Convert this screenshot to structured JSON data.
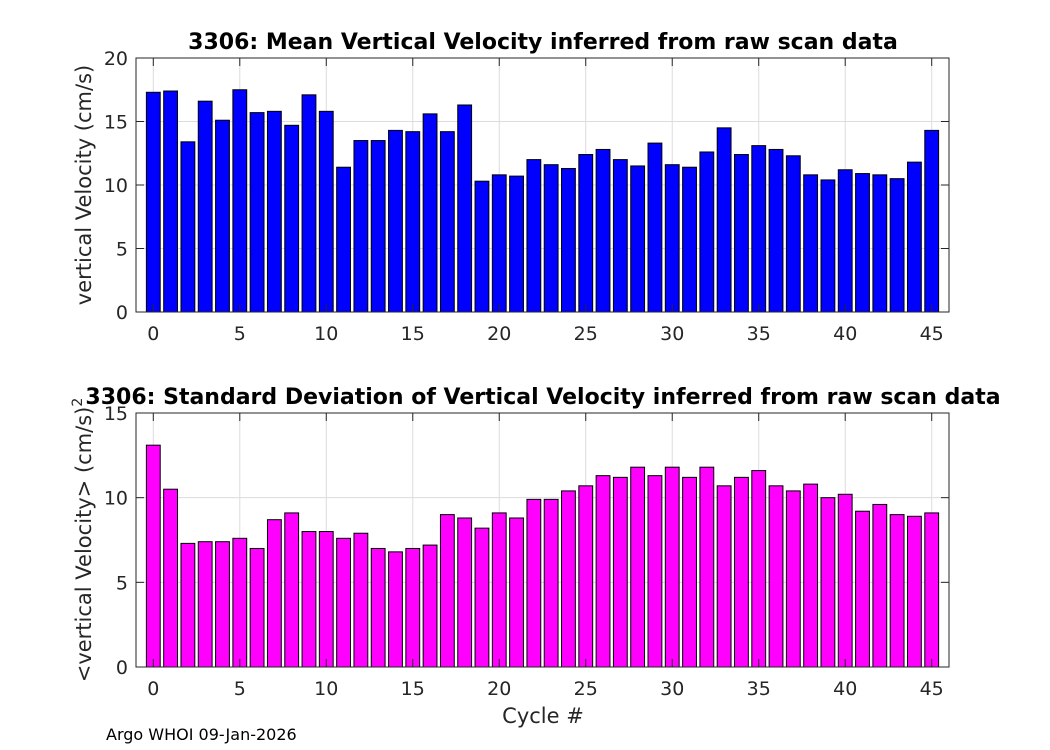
{
  "footer": "Argo WHOI 09-Jan-2026",
  "chart_data": [
    {
      "type": "bar",
      "title": "3306: Mean Vertical Velocity inferred from raw scan data",
      "xlabel": "",
      "ylabel": "vertical Velocity (cm/s)",
      "color": "#0000ff",
      "xlim": [
        -1,
        46
      ],
      "ylim": [
        0,
        20
      ],
      "xticks": [
        0,
        5,
        10,
        15,
        20,
        25,
        30,
        35,
        40,
        45
      ],
      "yticks": [
        0,
        5,
        10,
        15,
        20
      ],
      "grid": true,
      "x": [
        0,
        1,
        2,
        3,
        4,
        5,
        6,
        7,
        8,
        9,
        10,
        11,
        12,
        13,
        14,
        15,
        16,
        17,
        18,
        19,
        20,
        21,
        22,
        23,
        24,
        25,
        26,
        27,
        28,
        29,
        30,
        31,
        32,
        33,
        34,
        35,
        36,
        37,
        38,
        39,
        40,
        41,
        42,
        43,
        44,
        45
      ],
      "values": [
        17.3,
        17.4,
        13.4,
        16.6,
        15.1,
        17.5,
        15.7,
        15.8,
        14.7,
        17.1,
        15.8,
        11.4,
        13.5,
        13.5,
        14.3,
        14.2,
        15.6,
        14.2,
        16.3,
        10.3,
        10.8,
        10.7,
        12.0,
        11.6,
        11.3,
        12.4,
        12.8,
        12.0,
        11.5,
        13.3,
        11.6,
        11.4,
        12.6,
        14.5,
        12.4,
        13.1,
        12.8,
        12.3,
        10.8,
        10.4,
        11.2,
        10.9,
        10.8,
        10.5,
        11.8,
        14.3
      ]
    },
    {
      "type": "bar",
      "title": "3306: Standard Deviation of Vertical Velocity inferred from raw scan data",
      "xlabel": "Cycle #",
      "ylabel": "<vertical Velocity> (cm/s)",
      "ylabel_superscript": "2",
      "color": "#ff00ff",
      "xlim": [
        -1,
        46
      ],
      "ylim": [
        0,
        15
      ],
      "xticks": [
        0,
        5,
        10,
        15,
        20,
        25,
        30,
        35,
        40,
        45
      ],
      "yticks": [
        0,
        5,
        10,
        15
      ],
      "grid": true,
      "x": [
        0,
        1,
        2,
        3,
        4,
        5,
        6,
        7,
        8,
        9,
        10,
        11,
        12,
        13,
        14,
        15,
        16,
        17,
        18,
        19,
        20,
        21,
        22,
        23,
        24,
        25,
        26,
        27,
        28,
        29,
        30,
        31,
        32,
        33,
        34,
        35,
        36,
        37,
        38,
        39,
        40,
        41,
        42,
        43,
        44,
        45
      ],
      "values": [
        13.1,
        10.5,
        7.3,
        7.4,
        7.4,
        7.6,
        7.0,
        8.7,
        9.1,
        8.0,
        8.0,
        7.6,
        7.9,
        7.0,
        6.8,
        7.0,
        7.2,
        9.0,
        8.8,
        8.2,
        9.1,
        8.8,
        9.9,
        9.9,
        10.4,
        10.7,
        11.3,
        11.2,
        11.8,
        11.3,
        11.8,
        11.2,
        11.8,
        10.7,
        11.2,
        11.6,
        10.7,
        10.4,
        10.8,
        10.0,
        10.2,
        9.2,
        9.6,
        9.0,
        8.9,
        9.1
      ]
    }
  ]
}
